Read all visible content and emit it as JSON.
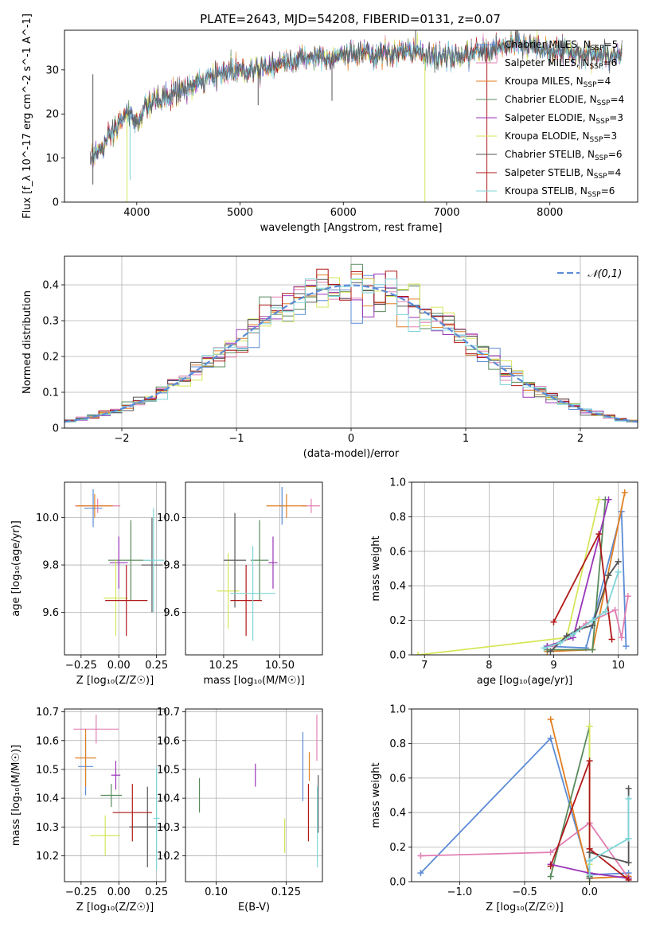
{
  "figure_title": "PLATE=2643, MJD=54208, FIBERID=0131, z=0.07",
  "series": [
    {
      "key": "chab_miles",
      "label": "Chabrier MILES, N_SSP=5",
      "color": "#5b8bd6"
    },
    {
      "key": "salp_miles",
      "label": "Salpeter MILES, N_SSP=6",
      "color": "#e17fb2"
    },
    {
      "key": "krou_miles",
      "label": "Kroupa MILES, N_SSP=4",
      "color": "#e07f22"
    },
    {
      "key": "chab_elod",
      "label": "Chabrier ELODIE, N_SSP=4",
      "color": "#588b5c"
    },
    {
      "key": "salp_elod",
      "label": "Salpeter ELODIE, N_SSP=3",
      "color": "#9a35b8"
    },
    {
      "key": "krou_elod",
      "label": "Kroupa ELODIE, N_SSP=3",
      "color": "#d6e65a"
    },
    {
      "key": "chab_stel",
      "label": "Chabrier STELIB, N_SSP=6",
      "color": "#555555"
    },
    {
      "key": "salp_stel",
      "label": "Salpeter STELIB, N_SSP=4",
      "color": "#b01818"
    },
    {
      "key": "krou_stel",
      "label": "Kroupa STELIB, N_SSP=6",
      "color": "#7fd5d8"
    }
  ],
  "chart_data": [
    {
      "id": "spectrum",
      "type": "line",
      "title": "PLATE=2643, MJD=54208, FIBERID=0131, z=0.07",
      "xlabel": "wavelength [Angstrom, rest frame]",
      "ylabel": "Flux [f_λ 10^-17 erg cm^-2 s^-1 A^-1]",
      "xlim": [
        3300,
        8850
      ],
      "ylim": [
        0,
        39
      ],
      "xticks": [
        4000,
        5000,
        6000,
        7000,
        8000
      ],
      "yticks": [
        0,
        10,
        20,
        30
      ],
      "legend": "top-right",
      "continuum": [
        [
          3550,
          10
        ],
        [
          3700,
          13
        ],
        [
          3800,
          17
        ],
        [
          3900,
          20
        ],
        [
          4000,
          18
        ],
        [
          4100,
          22
        ],
        [
          4300,
          24
        ],
        [
          4500,
          26
        ],
        [
          4700,
          28
        ],
        [
          4900,
          30
        ],
        [
          5100,
          30
        ],
        [
          5300,
          31
        ],
        [
          5500,
          32
        ],
        [
          5700,
          33
        ],
        [
          5900,
          33
        ],
        [
          6100,
          34
        ],
        [
          6300,
          33
        ],
        [
          6500,
          34
        ],
        [
          6700,
          34
        ],
        [
          6900,
          33
        ],
        [
          7100,
          33
        ],
        [
          7300,
          34
        ],
        [
          7500,
          35
        ],
        [
          7700,
          36
        ],
        [
          7900,
          35
        ],
        [
          8100,
          34
        ],
        [
          8300,
          34
        ],
        [
          8500,
          33
        ],
        [
          8700,
          33
        ]
      ],
      "features": [
        {
          "x": 3575,
          "min": 4,
          "max": 29
        },
        {
          "x": 3905,
          "min": 0,
          "max": 20
        },
        {
          "x": 3935,
          "min": 5,
          "max": 20
        },
        {
          "x": 5175,
          "min": 22,
          "max": 31
        },
        {
          "x": 5890,
          "min": 23,
          "max": 33
        },
        {
          "x": 6790,
          "min": 0,
          "max": 33
        },
        {
          "x": 7390,
          "min": 0,
          "max": 35
        },
        {
          "x": 6700,
          "min": 33,
          "max": 39
        }
      ]
    },
    {
      "id": "residuals",
      "type": "histogram",
      "xlabel": "(data-model)/error",
      "ylabel": "Normed distribution",
      "xlim": [
        -2.5,
        2.5
      ],
      "ylim": [
        0,
        0.48
      ],
      "xticks": [
        -2,
        -1,
        0,
        1,
        2
      ],
      "yticks": [
        0.0,
        0.1,
        0.2,
        0.3,
        0.4
      ],
      "bin_width": 0.1,
      "reference": {
        "label": "𝒩(0,1)",
        "mean": 0,
        "sigma": 1,
        "color": "#5b8bd6"
      },
      "legend": "top-right"
    },
    {
      "id": "age_vs_Z",
      "type": "scatter",
      "xlabel": "Z [log₁₀(Z/Z☉)]",
      "ylabel": "age  [log₁₀(age/yr)]",
      "xlim": [
        -0.36,
        0.31
      ],
      "ylim": [
        9.42,
        10.15
      ],
      "xticks": [
        -0.25,
        0.0,
        0.25
      ],
      "xtick_labels": [
        "−0.25",
        "0.00",
        "0.25"
      ],
      "yticks": [
        9.6,
        9.8,
        10.0
      ],
      "ytick_labels": [
        "9.6",
        "9.8",
        "10.0"
      ],
      "points": [
        {
          "s": "chab_miles",
          "x": -0.17,
          "xerr": 0.06,
          "y": 10.04,
          "yerr": 0.08
        },
        {
          "s": "salp_miles",
          "x": -0.14,
          "xerr": 0.15,
          "y": 10.05,
          "yerr": 0.03
        },
        {
          "s": "krou_miles",
          "x": -0.16,
          "xerr": 0.12,
          "y": 10.05,
          "yerr": 0.05
        },
        {
          "s": "chab_elod",
          "x": 0.08,
          "xerr": 0.15,
          "y": 9.82,
          "yerr": 0.17
        },
        {
          "s": "salp_elod",
          "x": 0.0,
          "xerr": 0.06,
          "y": 9.81,
          "yerr": 0.11
        },
        {
          "s": "krou_elod",
          "x": -0.02,
          "xerr": 0.08,
          "y": 9.66,
          "yerr": 0.16
        },
        {
          "s": "chab_stel",
          "x": 0.22,
          "xerr": 0.07,
          "y": 9.8,
          "yerr": 0.2
        },
        {
          "s": "salp_stel",
          "x": 0.05,
          "xerr": 0.14,
          "y": 9.65,
          "yerr": 0.15
        },
        {
          "s": "krou_stel",
          "x": 0.23,
          "xerr": 0.07,
          "y": 9.82,
          "yerr": 0.22
        }
      ]
    },
    {
      "id": "age_vs_mass",
      "type": "scatter",
      "xlabel": "mass [log₁₀(M/M☉)]",
      "ylabel": "",
      "xlim": [
        10.08,
        10.69
      ],
      "ylim": [
        9.42,
        10.15
      ],
      "xticks": [
        10.25,
        10.5
      ],
      "xtick_labels": [
        "10.25",
        "10.50"
      ],
      "yticks": [
        9.6,
        9.8,
        10.0
      ],
      "ytick_labels": [
        "9.6",
        "9.8",
        "10.0"
      ],
      "points": [
        {
          "s": "chab_miles",
          "x": 10.51,
          "xerr": 0.01,
          "y": 10.05,
          "yerr": 0.08
        },
        {
          "s": "salp_miles",
          "x": 10.64,
          "xerr": 0.04,
          "y": 10.05,
          "yerr": 0.03
        },
        {
          "s": "krou_miles",
          "x": 10.53,
          "xerr": 0.09,
          "y": 10.05,
          "yerr": 0.05
        },
        {
          "s": "chab_elod",
          "x": 10.41,
          "xerr": 0.04,
          "y": 9.82,
          "yerr": 0.17
        },
        {
          "s": "salp_elod",
          "x": 10.47,
          "xerr": 0.02,
          "y": 9.81,
          "yerr": 0.11
        },
        {
          "s": "krou_elod",
          "x": 10.27,
          "xerr": 0.05,
          "y": 9.69,
          "yerr": 0.16
        },
        {
          "s": "chab_stel",
          "x": 10.3,
          "xerr": 0.05,
          "y": 9.82,
          "yerr": 0.2
        },
        {
          "s": "salp_stel",
          "x": 10.35,
          "xerr": 0.07,
          "y": 9.65,
          "yerr": 0.15
        },
        {
          "s": "krou_stel",
          "x": 10.38,
          "xerr": 0.1,
          "y": 9.68,
          "yerr": 0.2
        }
      ]
    },
    {
      "id": "weight_vs_age",
      "type": "line",
      "xlabel": "age  [log₁₀(age/yr)]",
      "ylabel": "mass weight",
      "xlim": [
        6.8,
        10.3
      ],
      "ylim": [
        0,
        1
      ],
      "xticks": [
        7,
        8,
        9,
        10
      ],
      "xtick_labels": [
        "7",
        "8",
        "9",
        "10"
      ],
      "yticks": [
        0.0,
        0.2,
        0.4,
        0.6,
        0.8,
        1.0
      ],
      "ytick_labels": [
        "0.0",
        "0.2",
        "0.4",
        "0.6",
        "0.8",
        "1.0"
      ],
      "series": [
        {
          "s": "chab_miles",
          "x": [
            8.9,
            9.5,
            10.05,
            10.12
          ],
          "y": [
            0.05,
            0.04,
            0.83,
            0.05
          ]
        },
        {
          "s": "salp_miles",
          "x": [
            9.0,
            9.5,
            9.95,
            10.05,
            10.15
          ],
          "y": [
            0.05,
            0.18,
            0.26,
            0.1,
            0.34
          ]
        },
        {
          "s": "krou_miles",
          "x": [
            8.9,
            9.6,
            10.1
          ],
          "y": [
            0.02,
            0.03,
            0.94
          ]
        },
        {
          "s": "chab_elod",
          "x": [
            8.9,
            9.6,
            9.8
          ],
          "y": [
            0.03,
            0.03,
            0.9
          ]
        },
        {
          "s": "salp_elod",
          "x": [
            8.9,
            9.3,
            9.85
          ],
          "y": [
            0.05,
            0.1,
            0.9
          ]
        },
        {
          "s": "krou_elod",
          "x": [
            6.9,
            9.2,
            9.7
          ],
          "y": [
            0.0,
            0.1,
            0.9
          ]
        },
        {
          "s": "chab_stel",
          "x": [
            8.95,
            9.2,
            9.4,
            9.6,
            9.85,
            10.0
          ],
          "y": [
            0.02,
            0.11,
            0.15,
            0.17,
            0.46,
            0.54
          ]
        },
        {
          "s": "salp_stel",
          "x": [
            9.0,
            9.7,
            9.9
          ],
          "y": [
            0.19,
            0.7,
            0.09
          ]
        },
        {
          "s": "krou_stel",
          "x": [
            8.85,
            9.1,
            9.3,
            9.6,
            9.8,
            10.0
          ],
          "y": [
            0.04,
            0.07,
            0.12,
            0.2,
            0.25,
            0.48
          ]
        }
      ]
    },
    {
      "id": "mass_vs_Z",
      "type": "scatter",
      "xlabel": "Z [log₁₀(Z/Z☉)]",
      "ylabel": "mass [log₁₀(M/M☉)]",
      "xlim": [
        -0.36,
        0.31
      ],
      "ylim": [
        10.11,
        10.71
      ],
      "xticks": [
        -0.25,
        0.0,
        0.25
      ],
      "xtick_labels": [
        "−0.25",
        "0.00",
        "0.25"
      ],
      "yticks": [
        10.2,
        10.3,
        10.4,
        10.5,
        10.6,
        10.7
      ],
      "ytick_labels": [
        "10.2",
        "10.3",
        "10.4",
        "10.5",
        "10.6",
        "10.7"
      ],
      "points": [
        {
          "s": "chab_miles",
          "x": -0.22,
          "xerr": 0.05,
          "y": 10.51,
          "yerr": 0.1
        },
        {
          "s": "salp_miles",
          "x": -0.15,
          "xerr": 0.15,
          "y": 10.64,
          "yerr": 0.05
        },
        {
          "s": "krou_miles",
          "x": -0.22,
          "xerr": 0.07,
          "y": 10.54,
          "yerr": 0.1
        },
        {
          "s": "chab_elod",
          "x": -0.05,
          "xerr": 0.07,
          "y": 10.41,
          "yerr": 0.04
        },
        {
          "s": "salp_elod",
          "x": -0.02,
          "xerr": 0.03,
          "y": 10.48,
          "yerr": 0.05
        },
        {
          "s": "krou_elod",
          "x": -0.09,
          "xerr": 0.1,
          "y": 10.27,
          "yerr": 0.07
        },
        {
          "s": "chab_stel",
          "x": 0.19,
          "xerr": 0.12,
          "y": 10.3,
          "yerr": 0.14
        },
        {
          "s": "salp_stel",
          "x": 0.09,
          "xerr": 0.13,
          "y": 10.35,
          "yerr": 0.1
        },
        {
          "s": "krou_stel",
          "x": 0.25,
          "xerr": 0.02,
          "y": 10.33,
          "yerr": 0.18
        }
      ]
    },
    {
      "id": "mass_vs_ebv",
      "type": "scatter",
      "xlabel": "E(B-V)",
      "ylabel": "",
      "xlim": [
        0.089,
        0.138
      ],
      "ylim": [
        10.11,
        10.71
      ],
      "xticks": [
        0.1,
        0.125
      ],
      "xtick_labels": [
        "0.10",
        "0.125"
      ],
      "yticks": [
        10.2,
        10.3,
        10.4,
        10.5,
        10.6,
        10.7
      ],
      "ytick_labels": [
        "10.2",
        "10.3",
        "10.4",
        "10.5",
        "10.6",
        "10.7"
      ],
      "points": [
        {
          "s": "chab_miles",
          "x": 0.131,
          "xerr": 0,
          "y": 10.51,
          "yerr": 0.12
        },
        {
          "s": "salp_miles",
          "x": 0.136,
          "xerr": 0,
          "y": 10.61,
          "yerr": 0.08
        },
        {
          "s": "krou_miles",
          "x": 0.1333,
          "xerr": 0,
          "y": 10.51,
          "yerr": 0.05
        },
        {
          "s": "chab_elod",
          "x": 0.094,
          "xerr": 0,
          "y": 10.41,
          "yerr": 0.06
        },
        {
          "s": "salp_elod",
          "x": 0.114,
          "xerr": 0,
          "y": 10.48,
          "yerr": 0.04
        },
        {
          "s": "krou_elod",
          "x": 0.1245,
          "xerr": 0,
          "y": 10.27,
          "yerr": 0.06
        },
        {
          "s": "chab_stel",
          "x": 0.1365,
          "xerr": 0,
          "y": 10.38,
          "yerr": 0.1
        },
        {
          "s": "salp_stel",
          "x": 0.133,
          "xerr": 0,
          "y": 10.35,
          "yerr": 0.1
        },
        {
          "s": "krou_stel",
          "x": 0.1362,
          "xerr": 0,
          "y": 10.3,
          "yerr": 0.14
        }
      ]
    },
    {
      "id": "weight_vs_Z",
      "type": "line",
      "xlabel": "Z [log₁₀(Z/Z☉)]",
      "ylabel": "mass weight",
      "xlim": [
        -1.37,
        0.37
      ],
      "ylim": [
        0,
        1
      ],
      "xticks": [
        -1.0,
        -0.5,
        0.0
      ],
      "xtick_labels": [
        "−1.0",
        "−0.5",
        "0.0"
      ],
      "yticks": [
        0.0,
        0.2,
        0.4,
        0.6,
        0.8,
        1.0
      ],
      "ytick_labels": [
        "0.0",
        "0.2",
        "0.4",
        "0.6",
        "0.8",
        "1.0"
      ],
      "series": [
        {
          "s": "chab_miles",
          "x": [
            -1.3,
            -0.3,
            0.0,
            0.3
          ],
          "y": [
            0.05,
            0.83,
            0.04,
            0.05
          ]
        },
        {
          "s": "salp_miles",
          "x": [
            -1.3,
            -0.3,
            0.0,
            0.3
          ],
          "y": [
            0.15,
            0.17,
            0.34,
            0.02
          ]
        },
        {
          "s": "krou_miles",
          "x": [
            -0.3,
            0.0,
            0.3
          ],
          "y": [
            0.94,
            0.02,
            0.03
          ]
        },
        {
          "s": "chab_elod",
          "x": [
            -0.3,
            0.0,
            0.0
          ],
          "y": [
            0.03,
            0.9,
            0.03
          ]
        },
        {
          "s": "salp_elod",
          "x": [
            -0.3,
            0.0,
            0.3
          ],
          "y": [
            0.1,
            0.05,
            0.02
          ]
        },
        {
          "s": "krou_elod",
          "x": [
            0.0,
            0.0,
            0.0
          ],
          "y": [
            0.9,
            0.1,
            0.0
          ]
        },
        {
          "s": "chab_stel",
          "x": [
            0.0,
            0.0,
            0.3,
            0.3
          ],
          "y": [
            0.02,
            0.17,
            0.11,
            0.54
          ]
        },
        {
          "s": "salp_stel",
          "x": [
            -0.3,
            0.0,
            0.0,
            0.3
          ],
          "y": [
            0.09,
            0.7,
            0.19,
            0.01
          ]
        },
        {
          "s": "krou_stel",
          "x": [
            0.0,
            0.0,
            0.3,
            0.3
          ],
          "y": [
            0.04,
            0.12,
            0.25,
            0.48
          ]
        }
      ]
    }
  ]
}
